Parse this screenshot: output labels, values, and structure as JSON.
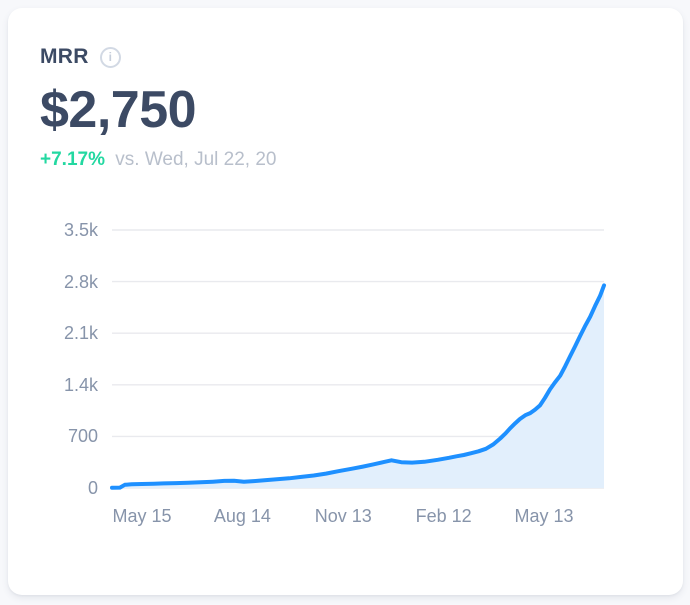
{
  "page": {
    "background": "#f7f8fb"
  },
  "card": {
    "title": "MRR",
    "info_icon_glyph": "i",
    "value": "$2,750",
    "delta": "+7.17%",
    "comparison": "vs. Wed, Jul 22, 20"
  },
  "colors": {
    "line_blue": "#1e90ff",
    "area_fill": "#e2effc",
    "positive_green": "#23d8a1",
    "heading_navy": "#3c4a64",
    "comparison_gray": "#b8bfcb",
    "axis_label_gray": "#8794aa",
    "gridline_gray": "#e9eaee",
    "card_background": "#ffffff"
  },
  "chart_data": {
    "type": "area",
    "title": "MRR over time",
    "unit": "USD",
    "ylim": [
      0,
      3500
    ],
    "grid": true,
    "legend": "none",
    "y_ticks": [
      {
        "value": 3500,
        "label": "3.5k"
      },
      {
        "value": 2800,
        "label": "2.8k"
      },
      {
        "value": 2100,
        "label": "2.1k"
      },
      {
        "value": 1400,
        "label": "1.4k"
      },
      {
        "value": 700,
        "label": "700"
      },
      {
        "value": 0,
        "label": "0"
      }
    ],
    "x_ticks": [
      {
        "f": 0.061,
        "label": "May 15"
      },
      {
        "f": 0.265,
        "label": "Aug 14"
      },
      {
        "f": 0.47,
        "label": "Nov 13"
      },
      {
        "f": 0.674,
        "label": "Feb 12"
      },
      {
        "f": 0.878,
        "label": "May 13"
      }
    ],
    "series": [
      {
        "name": "MRR",
        "points": [
          [
            0.0,
            4
          ],
          [
            0.016,
            6
          ],
          [
            0.026,
            44
          ],
          [
            0.04,
            50
          ],
          [
            0.061,
            54
          ],
          [
            0.085,
            58
          ],
          [
            0.105,
            62
          ],
          [
            0.13,
            66
          ],
          [
            0.155,
            72
          ],
          [
            0.18,
            78
          ],
          [
            0.205,
            86
          ],
          [
            0.228,
            96
          ],
          [
            0.248,
            98
          ],
          [
            0.268,
            84
          ],
          [
            0.288,
            94
          ],
          [
            0.31,
            106
          ],
          [
            0.335,
            118
          ],
          [
            0.36,
            132
          ],
          [
            0.385,
            150
          ],
          [
            0.41,
            170
          ],
          [
            0.435,
            196
          ],
          [
            0.46,
            228
          ],
          [
            0.488,
            262
          ],
          [
            0.51,
            290
          ],
          [
            0.532,
            322
          ],
          [
            0.552,
            352
          ],
          [
            0.568,
            376
          ],
          [
            0.588,
            350
          ],
          [
            0.61,
            344
          ],
          [
            0.635,
            356
          ],
          [
            0.662,
            382
          ],
          [
            0.685,
            410
          ],
          [
            0.7,
            430
          ],
          [
            0.715,
            448
          ],
          [
            0.73,
            472
          ],
          [
            0.745,
            498
          ],
          [
            0.76,
            532
          ],
          [
            0.775,
            592
          ],
          [
            0.789,
            672
          ],
          [
            0.8,
            742
          ],
          [
            0.809,
            808
          ],
          [
            0.82,
            880
          ],
          [
            0.829,
            936
          ],
          [
            0.84,
            988
          ],
          [
            0.85,
            1016
          ],
          [
            0.86,
            1064
          ],
          [
            0.87,
            1120
          ],
          [
            0.88,
            1224
          ],
          [
            0.89,
            1336
          ],
          [
            0.9,
            1430
          ],
          [
            0.911,
            1524
          ],
          [
            0.921,
            1650
          ],
          [
            0.931,
            1786
          ],
          [
            0.941,
            1920
          ],
          [
            0.951,
            2056
          ],
          [
            0.961,
            2190
          ],
          [
            0.972,
            2324
          ],
          [
            0.982,
            2470
          ],
          [
            0.992,
            2608
          ],
          [
            1.0,
            2748
          ]
        ]
      }
    ]
  }
}
